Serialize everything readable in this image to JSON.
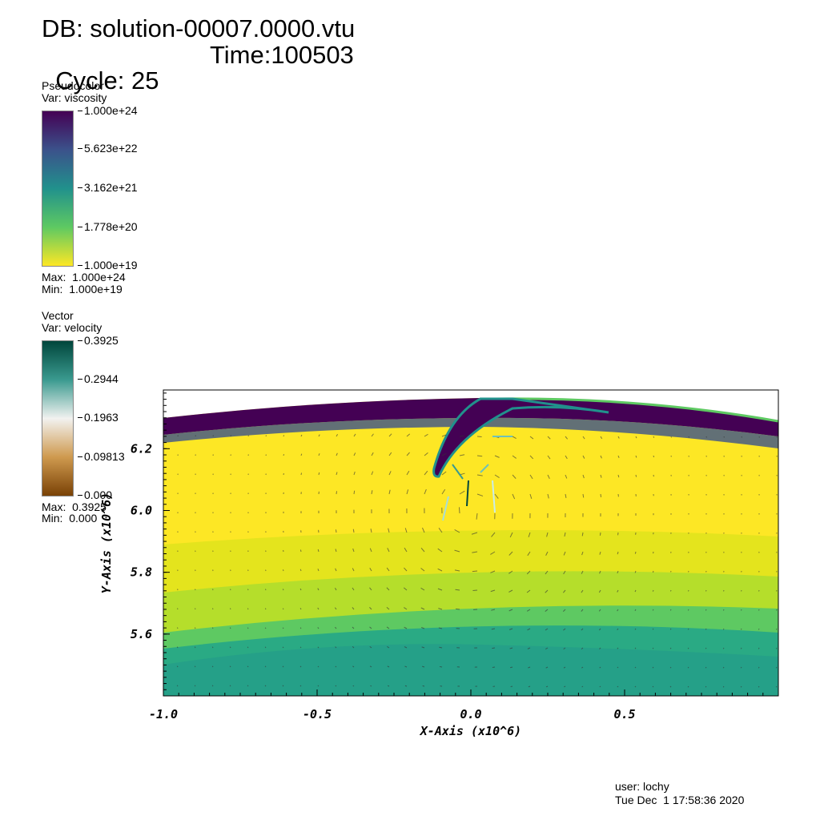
{
  "header": {
    "db": "DB: solution-00007.0000.vtu",
    "cycle": "Cycle: 25",
    "time": "Time:100503"
  },
  "legend_viscosity": {
    "kind": "Pseudocolor",
    "var": "Var: viscosity",
    "ticks": [
      "1.000e+24",
      "5.623e+22",
      "3.162e+21",
      "1.778e+20",
      "1.000e+19"
    ],
    "max": "Max:  1.000e+24",
    "min": "Min:  1.000e+19",
    "colors": [
      "#440154",
      "#3b528b",
      "#21918c",
      "#5ec962",
      "#fde725"
    ]
  },
  "legend_velocity": {
    "kind": "Vector",
    "var": "Var: velocity",
    "ticks": [
      "0.3925",
      "0.2944",
      "0.1963",
      "0.09813",
      "0.000"
    ],
    "max": "Max:  0.3925",
    "min": "Min:  0.000",
    "colors": [
      "#01463c",
      "#3a9a8f",
      "#f2f2f0",
      "#cf9a4f",
      "#7a4206"
    ]
  },
  "chart_data": {
    "type": "heatmap",
    "xlabel": "X-Axis (x10^6)",
    "ylabel": "Y-Axis (x10^6)",
    "xlim": [
      -1.0,
      1.0
    ],
    "ylim": [
      5.4,
      6.39
    ],
    "x_ticks": [
      "-1.0",
      "-0.5",
      "0.0",
      "0.5"
    ],
    "y_ticks": [
      "5.6",
      "5.8",
      "6.0",
      "6.2"
    ],
    "x_tick_values": [
      -1.0,
      -0.5,
      0.0,
      0.5
    ],
    "y_tick_values": [
      5.6,
      5.8,
      6.0,
      6.2
    ],
    "colors": {
      "lithosphere": "#440154",
      "mantle_upper": "#fde725",
      "mantle_mid": "#b5de2b",
      "mantle_lower": "#5ec962",
      "mantle_deep": "#2aaa84",
      "mantle_deepest": "#23998a",
      "edge": "#5ec962"
    }
  },
  "footer": {
    "user": "user: lochy",
    "date": "Tue Dec  1 17:58:36 2020"
  }
}
